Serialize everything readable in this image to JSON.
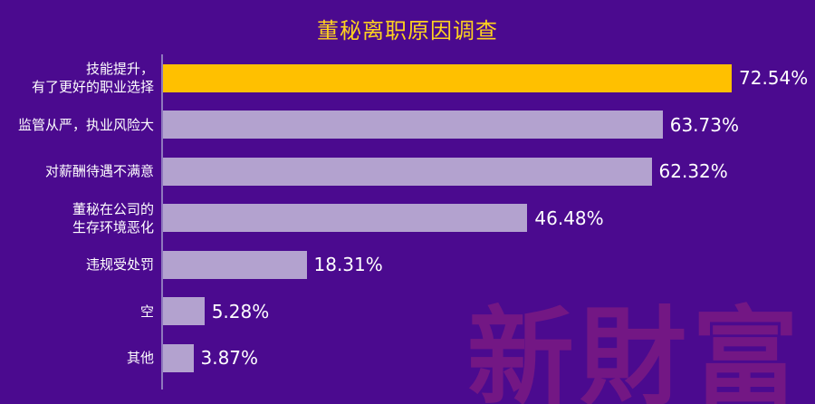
{
  "chart_data": {
    "type": "bar",
    "orientation": "horizontal",
    "title": "董秘离职原因调查",
    "categories": [
      "技能提升，\n有了更好的职业选择",
      "监管从严，执业风险大",
      "对薪酬待遇不满意",
      "董秘在公司的\n生存环境恶化",
      "违规受处罚",
      "空",
      "其他"
    ],
    "values": [
      72.54,
      63.73,
      62.32,
      46.48,
      18.31,
      5.28,
      3.87
    ],
    "value_labels": [
      "72.54%",
      "63.73%",
      "62.32%",
      "46.48%",
      "18.31%",
      "5.28%",
      "3.87%"
    ],
    "xlim": [
      0,
      80
    ],
    "bar_colors": [
      "#ffc000",
      "#b3a2cf",
      "#b3a2cf",
      "#b3a2cf",
      "#b3a2cf",
      "#b3a2cf",
      "#b3a2cf"
    ],
    "grid": false,
    "legend": "none"
  },
  "watermark": "新財富",
  "colors": {
    "background": "#4b0a8f",
    "title": "#ffd21f",
    "highlight_bar": "#ffc000",
    "default_bar": "#b3a2cf",
    "text": "#ffffff"
  }
}
